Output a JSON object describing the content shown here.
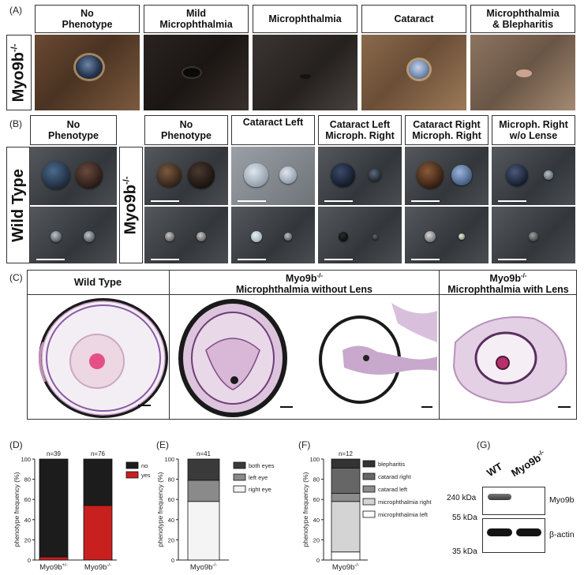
{
  "panels": {
    "A": {
      "label": "(A)",
      "row_label": "Myo9b",
      "row_sup": "-/-",
      "headers": [
        "No\nPhenotype",
        "Mild\nMicrophthalmia",
        "Microphthalmia",
        "Cataract",
        "Microphthalmia\n& Blepharitis"
      ]
    },
    "B": {
      "label": "(B)",
      "wt_label": "Wild Type",
      "ko_label": "Myo9b",
      "ko_sup": "-/-",
      "wt_header": "No\nPhenotype",
      "headers": [
        "No\nPhenotype",
        "Cataract Left",
        "Cataract Left\nMicroph. Right",
        "Cataract Right\nMicroph. Right",
        "Microph. Right\nw/o Lense"
      ]
    },
    "C": {
      "label": "(C)",
      "h1": "Wild Type",
      "h2_line1": "Myo9b",
      "h2_sup": "-/-",
      "h2_line2": "Microphthalmia without Lens",
      "h3_line1": "Myo9b",
      "h3_sup": "-/-",
      "h3_line2": "Microphthalmia with Lens"
    },
    "D": {
      "label": "(D)"
    },
    "E": {
      "label": "(E)"
    },
    "F": {
      "label": "(F)"
    },
    "G": {
      "label": "(G)",
      "lane1": "WT",
      "lane2": "Myo9b",
      "lane2_sup": "-/-",
      "mw": [
        "240 kDa",
        "55 kDa",
        "35 kDa"
      ],
      "band1": "Myo9b",
      "band2": "β-actin"
    }
  },
  "chart_data": [
    {
      "type": "bar",
      "stacked": true,
      "ylabel": "phenotype frequency (%)",
      "ylim": [
        0,
        100
      ],
      "yticks": [
        0,
        20,
        40,
        60,
        80,
        100
      ],
      "categories": [
        "Myo9b+/-",
        "Myo9b-/-"
      ],
      "n_labels": [
        "n=39",
        "n=76"
      ],
      "series": [
        {
          "name": "yes",
          "color": "#c8201f",
          "values": [
            3,
            54
          ]
        },
        {
          "name": "no",
          "color": "#1c1c1c",
          "values": [
            97,
            46
          ]
        }
      ],
      "legend": "right"
    },
    {
      "type": "bar",
      "stacked": true,
      "ylabel": "phenotype frequency (%)",
      "ylim": [
        0,
        100
      ],
      "yticks": [
        0,
        20,
        40,
        60,
        80,
        100
      ],
      "categories": [
        "Myo9b-/-"
      ],
      "n_labels": [
        "n=41"
      ],
      "series": [
        {
          "name": "right eye",
          "color": "#f4f4f4",
          "values": [
            58
          ]
        },
        {
          "name": "left eye",
          "color": "#8a8a8a",
          "values": [
            21
          ]
        },
        {
          "name": "both eyes",
          "color": "#3a3a3a",
          "values": [
            21
          ]
        }
      ],
      "legend": "right"
    },
    {
      "type": "bar",
      "stacked": true,
      "ylabel": "phenotype frequency (%)",
      "ylim": [
        0,
        100
      ],
      "yticks": [
        0,
        20,
        40,
        60,
        80,
        100
      ],
      "categories": [
        "Myo9b-/-"
      ],
      "n_labels": [
        "n=12"
      ],
      "series": [
        {
          "name": "microphthalmia left",
          "color": "#ffffff",
          "values": [
            8
          ]
        },
        {
          "name": "microphthalmia right",
          "color": "#d4d4d4",
          "values": [
            50
          ]
        },
        {
          "name": "catarad left",
          "color": "#8c8c8c",
          "values": [
            8
          ]
        },
        {
          "name": "catarad right",
          "color": "#666666",
          "values": [
            25
          ]
        },
        {
          "name": "blepharitis",
          "color": "#333333",
          "values": [
            9
          ]
        }
      ],
      "legend": "right"
    }
  ]
}
